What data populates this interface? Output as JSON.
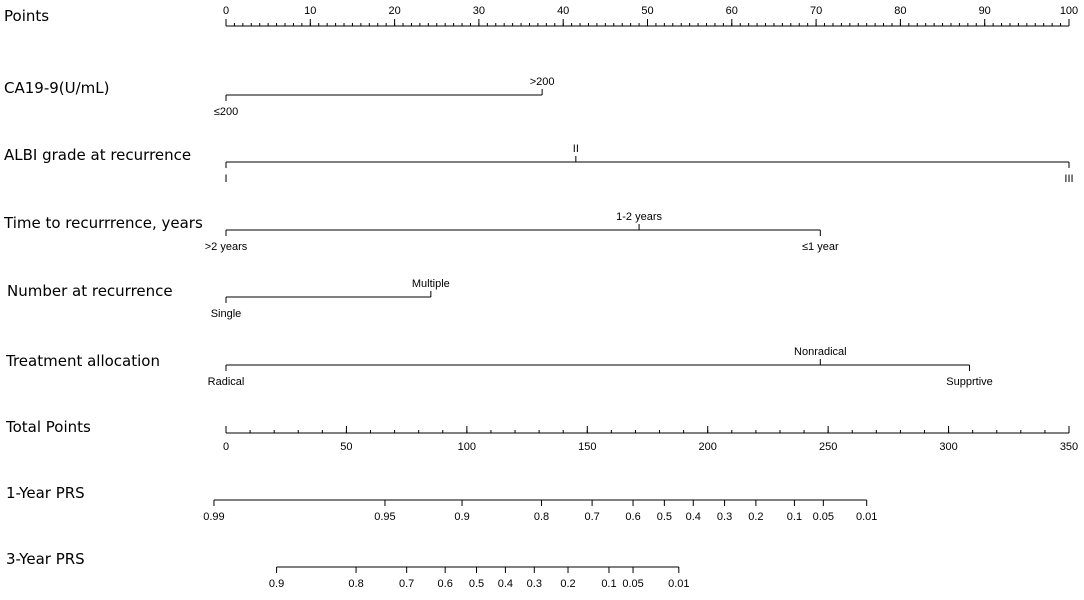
{
  "chart_data": {
    "type": "nomogram",
    "rows": [
      {
        "label": "Points",
        "kind": "scale",
        "ticks": [
          "0",
          "10",
          "20",
          "30",
          "40",
          "50",
          "60",
          "70",
          "80",
          "90",
          "100"
        ],
        "tick_values": [
          0,
          10,
          20,
          30,
          40,
          50,
          60,
          70,
          80,
          90,
          100
        ],
        "minor_step": 1,
        "points_range": [
          0,
          100
        ]
      },
      {
        "label": "CA19-9(U/mL)",
        "kind": "variable",
        "levels": [
          {
            "label": "≤200",
            "points": 0,
            "label_side": "below"
          },
          {
            "label": ">200",
            "points": 37.5,
            "label_side": "above"
          }
        ]
      },
      {
        "label": "ALBI grade at recurrence",
        "kind": "variable",
        "levels": [
          {
            "label": "I",
            "points": 0,
            "label_side": "below"
          },
          {
            "label": "II",
            "points": 41.5,
            "label_side": "above"
          },
          {
            "label": "III",
            "points": 100,
            "label_side": "below"
          }
        ]
      },
      {
        "label": "Time to recurrrence, years",
        "kind": "variable",
        "levels": [
          {
            "label": ">2 years",
            "points": 0,
            "label_side": "below"
          },
          {
            "label": "1-2 years",
            "points": 49,
            "label_side": "above"
          },
          {
            "label": "≤1 year",
            "points": 70.5,
            "label_side": "below"
          }
        ]
      },
      {
        "label": "Number at recurrence",
        "kind": "variable",
        "levels": [
          {
            "label": "Single",
            "points": 0,
            "label_side": "below"
          },
          {
            "label": "Multiple",
            "points": 24.3,
            "label_side": "above"
          }
        ]
      },
      {
        "label": "Treatment allocation",
        "kind": "variable",
        "levels": [
          {
            "label": "Radical",
            "points": 0,
            "label_side": "below"
          },
          {
            "label": "Nonradical",
            "points": 70.5,
            "label_side": "above"
          },
          {
            "label": "Supprtive",
            "points": 88.2,
            "label_side": "below"
          }
        ]
      },
      {
        "label": "Total Points",
        "kind": "scale",
        "ticks": [
          "0",
          "50",
          "100",
          "150",
          "200",
          "250",
          "300",
          "350"
        ],
        "tick_values": [
          0,
          50,
          100,
          150,
          200,
          250,
          300,
          350
        ],
        "minor_step": 10,
        "points_range": [
          0,
          350
        ]
      },
      {
        "label": "1-Year PRS",
        "kind": "probability",
        "ticks": [
          "0.99",
          "0.95",
          "0.9",
          "0.8",
          "0.7",
          "0.6",
          "0.5",
          "0.4",
          "0.3",
          "0.2",
          "0.1",
          "0.05",
          "0.01"
        ],
        "total_points": [
          -5,
          66,
          98,
          131,
          152,
          169,
          182,
          194,
          207,
          220,
          236,
          248,
          266
        ]
      },
      {
        "label": "3-Year PRS",
        "kind": "probability",
        "ticks": [
          "0.9",
          "0.8",
          "0.7",
          "0.6",
          "0.5",
          "0.4",
          "0.3",
          "0.2",
          "0.1",
          "0.05",
          "0.01"
        ],
        "total_points": [
          21,
          54,
          75,
          91,
          104,
          116,
          128,
          142,
          159,
          169,
          188
        ]
      }
    ]
  }
}
